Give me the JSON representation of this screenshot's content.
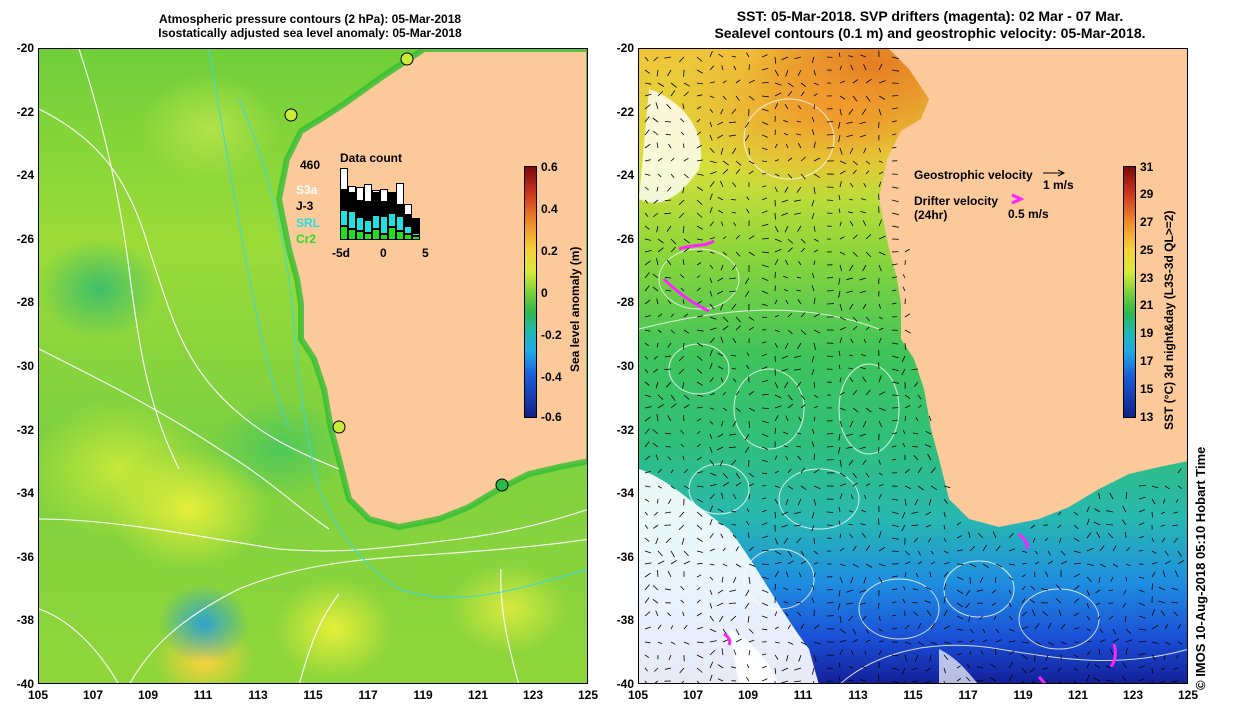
{
  "left_panel": {
    "title_line1": "Atmospheric pressure contours (2 hPa): 05-Mar-2018",
    "title_line2": "Isostatically adjusted sea level anomaly: 05-Mar-2018",
    "colorbar": {
      "title": "Sea level anomaly (m)",
      "ticks": [
        "0.6",
        "0.4",
        "0.2",
        "0",
        "-0.2",
        "-0.4",
        "-0.6"
      ]
    },
    "data_count": {
      "title": "Data count",
      "max_label": "460",
      "missions": [
        {
          "name": "S3a",
          "color": "#ffffff"
        },
        {
          "name": "J-3",
          "color": "#000000"
        },
        {
          "name": "SRL",
          "color": "#22e0e0"
        },
        {
          "name": "Cr2",
          "color": "#22dd22"
        }
      ],
      "x_ticks": [
        "-5d",
        "0",
        "5"
      ],
      "bars": [
        {
          "s3a": 0.3,
          "j3": 0.28,
          "srl": 0.22,
          "cr2": 0.2
        },
        {
          "s3a": 0.1,
          "j3": 0.25,
          "srl": 0.25,
          "cr2": 0.15
        },
        {
          "s3a": 0.2,
          "j3": 0.22,
          "srl": 0.2,
          "cr2": 0.12
        },
        {
          "s3a": 0.25,
          "j3": 0.25,
          "srl": 0.18,
          "cr2": 0.1
        },
        {
          "s3a": 0.05,
          "j3": 0.3,
          "srl": 0.2,
          "cr2": 0.15
        },
        {
          "s3a": 0.18,
          "j3": 0.2,
          "srl": 0.25,
          "cr2": 0.08
        },
        {
          "s3a": 0.0,
          "j3": 0.28,
          "srl": 0.2,
          "cr2": 0.18
        },
        {
          "s3a": 0.3,
          "j3": 0.15,
          "srl": 0.22,
          "cr2": 0.12
        },
        {
          "s3a": 0.15,
          "j3": 0.15,
          "srl": 0.12,
          "cr2": 0.08
        },
        {
          "s3a": 0.0,
          "j3": 0.2,
          "srl": 0.05,
          "cr2": 0.05
        }
      ]
    },
    "tide_gauges": [
      {
        "lon": 118.5,
        "lat": -20.3
      },
      {
        "lon": 114.2,
        "lat": -22.0
      },
      {
        "lon": 115.9,
        "lat": -31.8
      },
      {
        "lon": 121.9,
        "lat": -33.7
      }
    ]
  },
  "right_panel": {
    "title_line1": "SST: 05-Mar-2018. SVP drifters (magenta): 02 Mar - 07 Mar.",
    "title_line2": "Sealevel contours (0.1 m) and geostrophic velocity: 05-Mar-2018.",
    "colorbar": {
      "title": "SST (°C) 3d night&day (L3S-3d QL>=2)",
      "ticks": [
        "31",
        "29",
        "27",
        "25",
        "23",
        "21",
        "19",
        "17",
        "15",
        "13"
      ]
    },
    "legend": {
      "geostrophic_label": "Geostrophic velocity",
      "geostrophic_scale": "1 m/s",
      "drifter_label_line1": "Drifter velocity",
      "drifter_label_line2": "(24hr)",
      "drifter_scale": "0.5 m/s"
    }
  },
  "axes": {
    "lat_ticks": [
      "-20",
      "-22",
      "-24",
      "-26",
      "-28",
      "-30",
      "-32",
      "-34",
      "-36",
      "-38",
      "-40"
    ],
    "lon_ticks": [
      "105",
      "107",
      "109",
      "111",
      "113",
      "115",
      "117",
      "119",
      "121",
      "123",
      "125"
    ],
    "lon_range": [
      105,
      125
    ],
    "lat_range": [
      -40,
      -20
    ]
  },
  "footer": {
    "stamp": "© IMOS 10-Aug-2018 05:10 Hobart Time"
  },
  "colors": {
    "land": "#fbc99a",
    "contour": "#ffffff",
    "drifter": "#ff22ff",
    "cloud": "#ffffff"
  }
}
